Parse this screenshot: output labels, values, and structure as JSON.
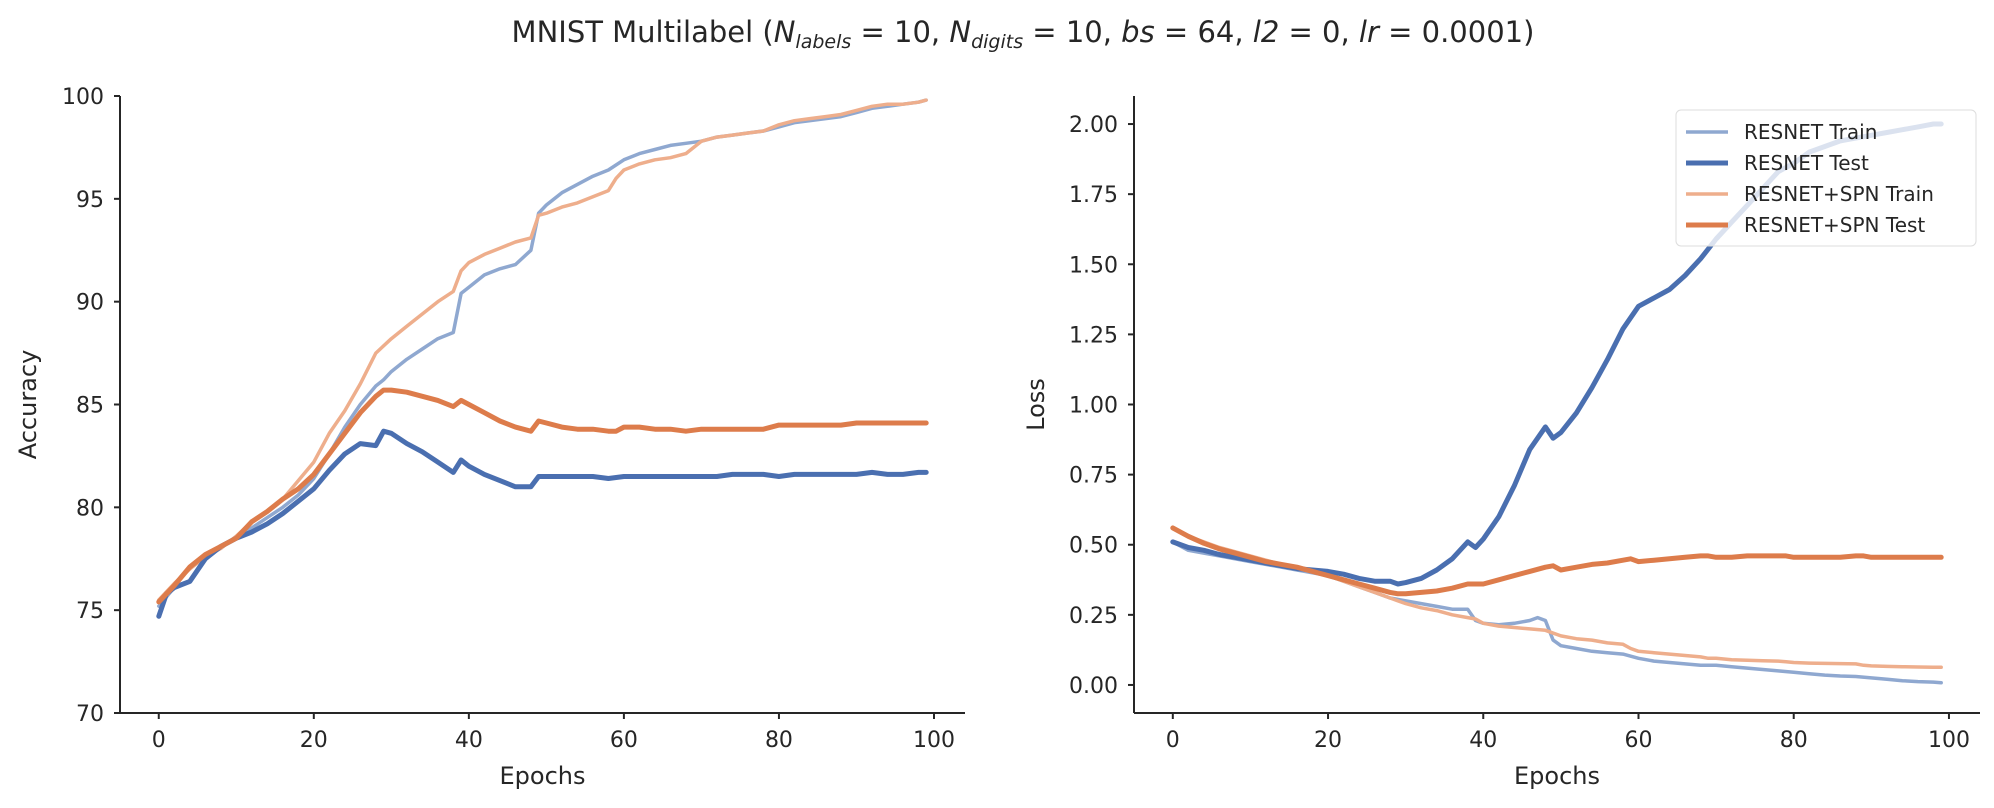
{
  "figure": {
    "title_parts": [
      "MNIST Multilabel (",
      "N",
      "labels",
      " = 10, ",
      "N",
      "digits",
      " = 10, ",
      "bs",
      " = 64, ",
      "l2",
      " = 0, ",
      "lr",
      " = 0.0001)"
    ]
  },
  "colors": {
    "resnet_train": "#8fa8d0",
    "resnet_test": "#4a6fb0",
    "spn_train": "#eeae8c",
    "spn_test": "#dd7c4b"
  },
  "chart_data": [
    {
      "type": "line",
      "xlabel": "Epochs",
      "ylabel": "Accuracy",
      "xlim": [
        -5,
        104
      ],
      "ylim": [
        70,
        100
      ],
      "xticks": [
        "0",
        "20",
        "40",
        "60",
        "80",
        "100"
      ],
      "xtick_values": [
        0,
        20,
        40,
        60,
        80,
        100
      ],
      "yticks": [
        "70",
        "75",
        "80",
        "85",
        "90",
        "95",
        "100"
      ],
      "ytick_values": [
        70,
        75,
        80,
        85,
        90,
        95,
        100
      ],
      "series": [
        {
          "key": "resnet_train",
          "x": [
            0,
            2,
            4,
            6,
            8,
            10,
            12,
            14,
            16,
            18,
            20,
            22,
            24,
            26,
            28,
            29,
            30,
            32,
            34,
            36,
            38,
            39,
            40,
            42,
            44,
            46,
            48,
            49,
            50,
            52,
            54,
            56,
            58,
            60,
            62,
            64,
            66,
            68,
            70,
            72,
            74,
            76,
            78,
            80,
            82,
            84,
            86,
            88,
            90,
            92,
            94,
            96,
            98,
            99
          ],
          "y": [
            75.2,
            76.1,
            76.4,
            77.5,
            78.1,
            78.5,
            79.0,
            79.5,
            80.0,
            80.6,
            81.4,
            82.6,
            83.9,
            85.0,
            85.9,
            86.2,
            86.6,
            87.2,
            87.7,
            88.2,
            88.5,
            90.4,
            90.7,
            91.3,
            91.6,
            91.8,
            92.5,
            94.3,
            94.7,
            95.3,
            95.7,
            96.1,
            96.4,
            96.9,
            97.2,
            97.4,
            97.6,
            97.7,
            97.8,
            98.0,
            98.1,
            98.2,
            98.3,
            98.5,
            98.7,
            98.8,
            98.9,
            99.0,
            99.2,
            99.4,
            99.5,
            99.6,
            99.7,
            99.8
          ]
        },
        {
          "key": "resnet_test",
          "x": [
            0,
            1,
            2,
            4,
            6,
            8,
            10,
            12,
            14,
            16,
            18,
            20,
            22,
            24,
            26,
            28,
            29,
            30,
            32,
            34,
            36,
            38,
            39,
            40,
            42,
            44,
            46,
            48,
            49,
            50,
            52,
            54,
            56,
            58,
            60,
            62,
            64,
            66,
            68,
            70,
            72,
            74,
            76,
            78,
            80,
            82,
            84,
            86,
            88,
            90,
            92,
            94,
            96,
            98,
            99
          ],
          "y": [
            74.7,
            75.8,
            76.1,
            76.4,
            77.5,
            78.1,
            78.5,
            78.8,
            79.2,
            79.7,
            80.3,
            80.9,
            81.8,
            82.6,
            83.1,
            83.0,
            83.7,
            83.6,
            83.1,
            82.7,
            82.2,
            81.7,
            82.3,
            82.0,
            81.6,
            81.3,
            81.0,
            81.0,
            81.5,
            81.5,
            81.5,
            81.5,
            81.5,
            81.4,
            81.5,
            81.5,
            81.5,
            81.5,
            81.5,
            81.5,
            81.5,
            81.6,
            81.6,
            81.6,
            81.5,
            81.6,
            81.6,
            81.6,
            81.6,
            81.6,
            81.7,
            81.6,
            81.6,
            81.7,
            81.7
          ]
        },
        {
          "key": "spn_train",
          "x": [
            0,
            2,
            4,
            6,
            8,
            10,
            12,
            14,
            16,
            18,
            20,
            22,
            24,
            26,
            28,
            30,
            32,
            34,
            36,
            38,
            39,
            40,
            42,
            44,
            46,
            48,
            49,
            50,
            52,
            54,
            56,
            58,
            59,
            60,
            62,
            64,
            66,
            68,
            70,
            72,
            74,
            76,
            78,
            80,
            82,
            84,
            86,
            88,
            90,
            92,
            94,
            96,
            98,
            99
          ],
          "y": [
            75.5,
            76.3,
            77.0,
            77.6,
            78.0,
            78.6,
            79.3,
            79.8,
            80.4,
            81.3,
            82.2,
            83.6,
            84.7,
            86.0,
            87.5,
            88.2,
            88.8,
            89.4,
            90.0,
            90.5,
            91.5,
            91.9,
            92.3,
            92.6,
            92.9,
            93.1,
            94.2,
            94.3,
            94.6,
            94.8,
            95.1,
            95.4,
            96.0,
            96.4,
            96.7,
            96.9,
            97.0,
            97.2,
            97.8,
            98.0,
            98.1,
            98.2,
            98.3,
            98.6,
            98.8,
            98.9,
            99.0,
            99.1,
            99.3,
            99.5,
            99.6,
            99.6,
            99.7,
            99.8
          ]
        },
        {
          "key": "spn_test",
          "x": [
            0,
            2,
            4,
            6,
            8,
            10,
            12,
            14,
            16,
            18,
            20,
            22,
            24,
            26,
            28,
            29,
            30,
            32,
            34,
            36,
            38,
            39,
            40,
            42,
            44,
            46,
            48,
            49,
            50,
            52,
            54,
            56,
            58,
            59,
            60,
            62,
            64,
            66,
            68,
            70,
            72,
            74,
            76,
            78,
            80,
            82,
            84,
            86,
            88,
            90,
            92,
            94,
            96,
            98,
            99
          ],
          "y": [
            75.4,
            76.2,
            77.1,
            77.7,
            78.1,
            78.5,
            79.3,
            79.8,
            80.4,
            80.9,
            81.6,
            82.6,
            83.6,
            84.6,
            85.4,
            85.7,
            85.7,
            85.6,
            85.4,
            85.2,
            84.9,
            85.2,
            85.0,
            84.6,
            84.2,
            83.9,
            83.7,
            84.2,
            84.1,
            83.9,
            83.8,
            83.8,
            83.7,
            83.7,
            83.9,
            83.9,
            83.8,
            83.8,
            83.7,
            83.8,
            83.8,
            83.8,
            83.8,
            83.8,
            84.0,
            84.0,
            84.0,
            84.0,
            84.0,
            84.1,
            84.1,
            84.1,
            84.1,
            84.1,
            84.1
          ]
        }
      ]
    },
    {
      "type": "line",
      "xlabel": "Epochs",
      "ylabel": "Loss",
      "xlim": [
        -5,
        104
      ],
      "ylim": [
        -0.1,
        2.1
      ],
      "xticks": [
        "0",
        "20",
        "40",
        "60",
        "80",
        "100"
      ],
      "xtick_values": [
        0,
        20,
        40,
        60,
        80,
        100
      ],
      "yticks": [
        "0.00",
        "0.25",
        "0.50",
        "0.75",
        "1.00",
        "1.25",
        "1.50",
        "1.75",
        "2.00"
      ],
      "ytick_values": [
        0,
        0.25,
        0.5,
        0.75,
        1.0,
        1.25,
        1.5,
        1.75,
        2.0
      ],
      "legend": {
        "position": "upper right",
        "items": [
          {
            "key": "resnet_train",
            "label": "RESNET Train"
          },
          {
            "key": "resnet_test",
            "label": "RESNET Test"
          },
          {
            "key": "spn_train",
            "label": "RESNET+SPN Train"
          },
          {
            "key": "spn_test",
            "label": "RESNET+SPN Test"
          }
        ]
      },
      "series": [
        {
          "key": "resnet_train",
          "name": "RESNET Train",
          "x": [
            0,
            2,
            4,
            6,
            8,
            10,
            12,
            14,
            16,
            18,
            20,
            22,
            24,
            26,
            28,
            30,
            32,
            34,
            36,
            38,
            39,
            40,
            42,
            44,
            46,
            47,
            48,
            49,
            50,
            52,
            54,
            56,
            58,
            60,
            62,
            64,
            66,
            68,
            70,
            72,
            74,
            76,
            78,
            80,
            82,
            84,
            86,
            88,
            90,
            92,
            94,
            96,
            98,
            99
          ],
          "y": [
            0.51,
            0.48,
            0.47,
            0.46,
            0.45,
            0.44,
            0.43,
            0.42,
            0.41,
            0.4,
            0.39,
            0.37,
            0.35,
            0.33,
            0.31,
            0.3,
            0.29,
            0.28,
            0.27,
            0.27,
            0.23,
            0.22,
            0.215,
            0.22,
            0.23,
            0.24,
            0.23,
            0.16,
            0.14,
            0.13,
            0.12,
            0.115,
            0.11,
            0.095,
            0.085,
            0.08,
            0.075,
            0.07,
            0.07,
            0.065,
            0.06,
            0.055,
            0.05,
            0.045,
            0.04,
            0.035,
            0.032,
            0.03,
            0.025,
            0.02,
            0.015,
            0.012,
            0.01,
            0.008
          ]
        },
        {
          "key": "resnet_test",
          "name": "RESNET Test",
          "x": [
            0,
            2,
            4,
            6,
            8,
            10,
            12,
            14,
            16,
            18,
            20,
            22,
            24,
            26,
            28,
            29,
            30,
            32,
            34,
            36,
            38,
            39,
            40,
            42,
            44,
            46,
            48,
            49,
            50,
            52,
            54,
            56,
            58,
            60,
            62,
            64,
            66,
            68,
            70,
            72,
            74,
            76,
            78,
            80,
            82,
            84,
            86,
            88,
            90,
            92,
            94,
            96,
            98,
            99
          ],
          "y": [
            0.51,
            0.49,
            0.48,
            0.465,
            0.455,
            0.445,
            0.435,
            0.425,
            0.415,
            0.41,
            0.405,
            0.395,
            0.38,
            0.37,
            0.37,
            0.36,
            0.365,
            0.38,
            0.41,
            0.45,
            0.51,
            0.49,
            0.52,
            0.6,
            0.71,
            0.84,
            0.92,
            0.88,
            0.9,
            0.97,
            1.06,
            1.16,
            1.27,
            1.35,
            1.38,
            1.41,
            1.46,
            1.52,
            1.59,
            1.65,
            1.71,
            1.77,
            1.83,
            1.86,
            1.9,
            1.92,
            1.94,
            1.95,
            1.96,
            1.97,
            1.98,
            1.99,
            2.0,
            2.0
          ]
        },
        {
          "key": "spn_train",
          "name": "RESNET+SPN Train",
          "x": [
            0,
            2,
            4,
            6,
            8,
            10,
            12,
            14,
            16,
            18,
            20,
            22,
            24,
            26,
            28,
            30,
            32,
            34,
            36,
            38,
            39,
            40,
            42,
            44,
            46,
            48,
            50,
            52,
            54,
            56,
            58,
            59,
            60,
            62,
            64,
            66,
            68,
            69,
            70,
            72,
            74,
            76,
            78,
            79,
            80,
            82,
            84,
            86,
            88,
            89,
            90,
            92,
            94,
            96,
            98,
            99
          ],
          "y": [
            0.56,
            0.53,
            0.51,
            0.49,
            0.475,
            0.46,
            0.445,
            0.43,
            0.42,
            0.405,
            0.39,
            0.37,
            0.35,
            0.33,
            0.31,
            0.29,
            0.275,
            0.265,
            0.25,
            0.24,
            0.235,
            0.22,
            0.21,
            0.205,
            0.2,
            0.195,
            0.175,
            0.165,
            0.16,
            0.15,
            0.145,
            0.13,
            0.12,
            0.115,
            0.11,
            0.105,
            0.1,
            0.095,
            0.095,
            0.09,
            0.088,
            0.086,
            0.085,
            0.083,
            0.08,
            0.078,
            0.077,
            0.076,
            0.075,
            0.07,
            0.068,
            0.066,
            0.065,
            0.064,
            0.063,
            0.063
          ]
        },
        {
          "key": "spn_test",
          "name": "RESNET+SPN Test",
          "x": [
            0,
            2,
            4,
            6,
            8,
            10,
            12,
            14,
            16,
            18,
            20,
            22,
            24,
            26,
            28,
            29,
            30,
            32,
            34,
            36,
            38,
            39,
            40,
            42,
            44,
            46,
            48,
            49,
            50,
            52,
            54,
            56,
            58,
            59,
            60,
            62,
            64,
            66,
            68,
            69,
            70,
            72,
            74,
            76,
            78,
            79,
            80,
            82,
            84,
            86,
            88,
            89,
            90,
            92,
            94,
            96,
            98,
            99
          ],
          "y": [
            0.56,
            0.53,
            0.505,
            0.485,
            0.47,
            0.455,
            0.44,
            0.43,
            0.42,
            0.405,
            0.39,
            0.375,
            0.36,
            0.345,
            0.33,
            0.325,
            0.325,
            0.33,
            0.335,
            0.345,
            0.36,
            0.36,
            0.36,
            0.375,
            0.39,
            0.405,
            0.42,
            0.425,
            0.41,
            0.42,
            0.43,
            0.435,
            0.445,
            0.45,
            0.44,
            0.445,
            0.45,
            0.455,
            0.46,
            0.46,
            0.455,
            0.455,
            0.46,
            0.46,
            0.46,
            0.46,
            0.455,
            0.455,
            0.455,
            0.455,
            0.46,
            0.46,
            0.455,
            0.455,
            0.455,
            0.455,
            0.455,
            0.455
          ]
        }
      ]
    }
  ]
}
